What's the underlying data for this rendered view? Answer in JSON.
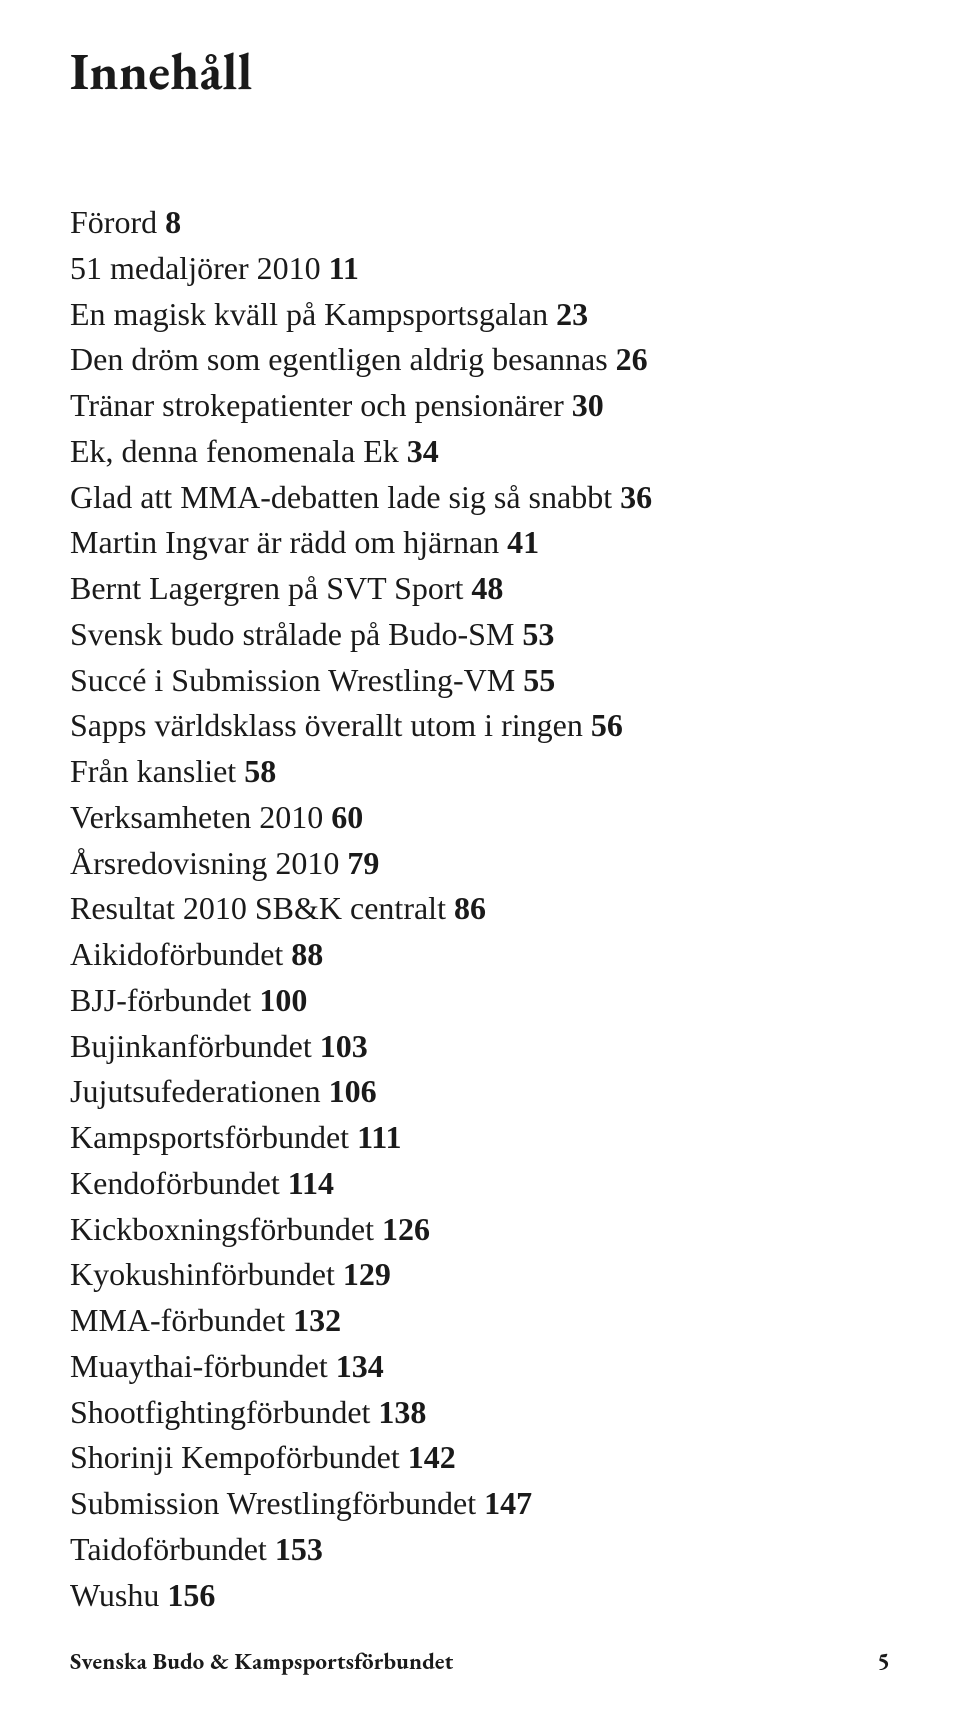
{
  "title": "Innehåll",
  "title_fontsize": 52,
  "body_fontsize": 32,
  "page_bold_weight": 700,
  "background_color": "#ffffff",
  "text_color": "#1a1a1a",
  "toc": [
    {
      "title": "Förord",
      "page": "8"
    },
    {
      "title": "51 medaljörer 2010",
      "page": "11"
    },
    {
      "title": "En magisk kväll på Kampsportsgalan",
      "page": "23"
    },
    {
      "title": "Den dröm som egentligen aldrig besannas",
      "page": "26"
    },
    {
      "title": "Tränar strokepatienter och pensionärer",
      "page": "30"
    },
    {
      "title": "Ek, denna fenomenala Ek",
      "page": "34"
    },
    {
      "title": "Glad att MMA-debatten lade sig så snabbt",
      "page": "36"
    },
    {
      "title": "Martin Ingvar är rädd om hjärnan",
      "page": "41"
    },
    {
      "title": "Bernt Lagergren på SVT Sport",
      "page": "48"
    },
    {
      "title": "Svensk budo strålade på Budo-SM",
      "page": "53"
    },
    {
      "title": "Succé i Submission Wrestling-VM",
      "page": "55"
    },
    {
      "title": "Sapps världsklass överallt utom i ringen",
      "page": "56"
    },
    {
      "title": "Från kansliet",
      "page": "58"
    },
    {
      "title": "Verksamheten 2010",
      "page": "60"
    },
    {
      "title": "Årsredovisning 2010",
      "page": "79"
    },
    {
      "title": "Resultat 2010 SB&K centralt",
      "page": "86"
    },
    {
      "title": "Aikidoförbundet",
      "page": "88"
    },
    {
      "title": "BJJ-förbundet",
      "page": "100"
    },
    {
      "title": "Bujinkanförbundet",
      "page": "103"
    },
    {
      "title": "Jujutsufederationen",
      "page": "106"
    },
    {
      "title": "Kampsportsförbundet",
      "page": "111"
    },
    {
      "title": "Kendoförbundet",
      "page": "114"
    },
    {
      "title": "Kickboxningsförbundet",
      "page": "126"
    },
    {
      "title": "Kyokushinförbundet",
      "page": "129"
    },
    {
      "title": "MMA-förbundet",
      "page": "132"
    },
    {
      "title": "Muaythai-förbundet",
      "page": "134"
    },
    {
      "title": "Shootfightingförbundet",
      "page": "138"
    },
    {
      "title": "Shorinji Kempoförbundet",
      "page": "142"
    },
    {
      "title": "Submission Wrestlingförbundet",
      "page": "147"
    },
    {
      "title": "Taidoförbundet",
      "page": "153"
    },
    {
      "title": "Wushu",
      "page": "156"
    }
  ],
  "footer": {
    "text": "Svenska Budo & Kampsportsförbundet",
    "page_number": "5"
  }
}
